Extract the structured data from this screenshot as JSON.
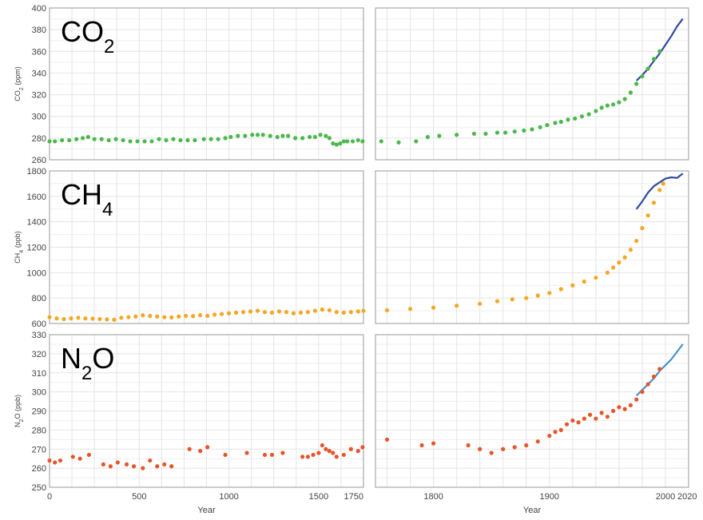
{
  "chart_data": [
    {
      "type": "scatter",
      "title": "CO2",
      "title_main": "CO",
      "title_sub": "2",
      "ylabel": "CO2 (ppm)",
      "ylabel_main": "CO",
      "ylabel_sub": "2",
      "ylabel_rest": " (ppm)",
      "ylim": [
        260,
        400
      ],
      "yticks": [
        260,
        280,
        300,
        320,
        340,
        360,
        380,
        400
      ],
      "color": "#4cb84c",
      "line_color": "#2e4a9e",
      "left_points": [
        [
          0,
          277
        ],
        [
          30,
          277
        ],
        [
          70,
          278
        ],
        [
          110,
          278
        ],
        [
          150,
          279
        ],
        [
          185,
          280
        ],
        [
          215,
          281
        ],
        [
          250,
          279
        ],
        [
          290,
          279
        ],
        [
          330,
          278
        ],
        [
          370,
          279
        ],
        [
          410,
          278
        ],
        [
          450,
          277
        ],
        [
          490,
          277
        ],
        [
          530,
          277
        ],
        [
          570,
          277
        ],
        [
          610,
          279
        ],
        [
          650,
          278
        ],
        [
          690,
          279
        ],
        [
          730,
          278
        ],
        [
          770,
          278
        ],
        [
          810,
          278
        ],
        [
          860,
          279
        ],
        [
          900,
          279
        ],
        [
          940,
          279
        ],
        [
          980,
          280
        ],
        [
          1010,
          281
        ],
        [
          1050,
          282
        ],
        [
          1090,
          282
        ],
        [
          1130,
          283
        ],
        [
          1160,
          283
        ],
        [
          1190,
          283
        ],
        [
          1230,
          282
        ],
        [
          1270,
          281
        ],
        [
          1300,
          282
        ],
        [
          1330,
          282
        ],
        [
          1370,
          280
        ],
        [
          1410,
          280
        ],
        [
          1450,
          281
        ],
        [
          1480,
          281
        ],
        [
          1510,
          283
        ],
        [
          1540,
          282
        ],
        [
          1560,
          280
        ],
        [
          1580,
          275
        ],
        [
          1600,
          274
        ],
        [
          1620,
          275
        ],
        [
          1640,
          277
        ],
        [
          1660,
          277
        ],
        [
          1690,
          277
        ],
        [
          1720,
          278
        ],
        [
          1745,
          277
        ]
      ],
      "right_points": [
        [
          1755,
          277
        ],
        [
          1770,
          276
        ],
        [
          1785,
          277
        ],
        [
          1795,
          281
        ],
        [
          1805,
          282
        ],
        [
          1820,
          283
        ],
        [
          1835,
          284
        ],
        [
          1845,
          284
        ],
        [
          1855,
          285
        ],
        [
          1862,
          285
        ],
        [
          1870,
          286
        ],
        [
          1878,
          287
        ],
        [
          1885,
          288
        ],
        [
          1892,
          290
        ],
        [
          1898,
          292
        ],
        [
          1905,
          294
        ],
        [
          1910,
          295
        ],
        [
          1916,
          297
        ],
        [
          1922,
          298
        ],
        [
          1928,
          300
        ],
        [
          1934,
          302
        ],
        [
          1940,
          305
        ],
        [
          1945,
          308
        ],
        [
          1950,
          310
        ],
        [
          1955,
          311
        ],
        [
          1960,
          313
        ],
        [
          1965,
          316
        ],
        [
          1970,
          322
        ],
        [
          1975,
          330
        ],
        [
          1980,
          337
        ],
        [
          1985,
          344
        ],
        [
          1990,
          353
        ],
        [
          1995,
          360
        ]
      ],
      "right_line": [
        [
          1975,
          333
        ],
        [
          1980,
          338
        ],
        [
          1985,
          344
        ],
        [
          1990,
          351
        ],
        [
          1995,
          358
        ],
        [
          2000,
          366
        ],
        [
          2005,
          374
        ],
        [
          2010,
          383
        ],
        [
          2015,
          390
        ]
      ]
    },
    {
      "type": "scatter",
      "title": "CH4",
      "title_main": "CH",
      "title_sub": "4",
      "ylabel": "CH4 (ppb)",
      "ylabel_main": "CH",
      "ylabel_sub": "4",
      "ylabel_rest": " (ppb)",
      "ylim": [
        600,
        1800
      ],
      "yticks": [
        600,
        800,
        1000,
        1200,
        1400,
        1600,
        1800
      ],
      "color": "#f5a623",
      "line_color": "#2e4a9e",
      "left_points": [
        [
          0,
          650
        ],
        [
          40,
          640
        ],
        [
          80,
          635
        ],
        [
          120,
          640
        ],
        [
          160,
          645
        ],
        [
          200,
          640
        ],
        [
          240,
          638
        ],
        [
          280,
          635
        ],
        [
          320,
          632
        ],
        [
          360,
          630
        ],
        [
          400,
          645
        ],
        [
          440,
          650
        ],
        [
          480,
          655
        ],
        [
          520,
          665
        ],
        [
          560,
          660
        ],
        [
          600,
          655
        ],
        [
          640,
          650
        ],
        [
          680,
          648
        ],
        [
          720,
          655
        ],
        [
          760,
          660
        ],
        [
          800,
          658
        ],
        [
          840,
          665
        ],
        [
          880,
          660
        ],
        [
          920,
          670
        ],
        [
          960,
          675
        ],
        [
          1000,
          680
        ],
        [
          1040,
          685
        ],
        [
          1080,
          690
        ],
        [
          1120,
          695
        ],
        [
          1160,
          700
        ],
        [
          1200,
          690
        ],
        [
          1240,
          685
        ],
        [
          1280,
          695
        ],
        [
          1320,
          690
        ],
        [
          1360,
          680
        ],
        [
          1400,
          685
        ],
        [
          1440,
          690
        ],
        [
          1480,
          700
        ],
        [
          1520,
          710
        ],
        [
          1560,
          705
        ],
        [
          1600,
          690
        ],
        [
          1640,
          685
        ],
        [
          1680,
          690
        ],
        [
          1720,
          695
        ],
        [
          1750,
          700
        ]
      ],
      "right_points": [
        [
          1760,
          705
        ],
        [
          1780,
          715
        ],
        [
          1800,
          725
        ],
        [
          1820,
          740
        ],
        [
          1840,
          755
        ],
        [
          1855,
          775
        ],
        [
          1868,
          790
        ],
        [
          1880,
          800
        ],
        [
          1890,
          820
        ],
        [
          1900,
          840
        ],
        [
          1910,
          870
        ],
        [
          1920,
          900
        ],
        [
          1930,
          930
        ],
        [
          1940,
          960
        ],
        [
          1950,
          1000
        ],
        [
          1955,
          1040
        ],
        [
          1960,
          1080
        ],
        [
          1965,
          1120
        ],
        [
          1970,
          1180
        ],
        [
          1975,
          1250
        ],
        [
          1980,
          1350
        ],
        [
          1985,
          1450
        ],
        [
          1990,
          1550
        ],
        [
          1995,
          1650
        ],
        [
          1998,
          1700
        ]
      ],
      "right_line": [
        [
          1975,
          1500
        ],
        [
          1980,
          1560
        ],
        [
          1985,
          1630
        ],
        [
          1990,
          1680
        ],
        [
          1995,
          1710
        ],
        [
          2000,
          1740
        ],
        [
          2005,
          1750
        ],
        [
          2010,
          1745
        ],
        [
          2015,
          1780
        ]
      ]
    },
    {
      "type": "scatter",
      "title": "N2O",
      "title_main": "N",
      "title_sub": "2",
      "title_rest": "O",
      "ylabel": "N2O (ppb)",
      "ylabel_main": "N",
      "ylabel_sub": "2",
      "ylabel_rest": "O (ppb)",
      "ylim": [
        250,
        330
      ],
      "yticks": [
        250,
        260,
        270,
        280,
        290,
        300,
        310,
        320,
        330
      ],
      "color": "#e8552a",
      "line_color": "#4a90c8",
      "left_points": [
        [
          0,
          264
        ],
        [
          30,
          263
        ],
        [
          60,
          264
        ],
        [
          130,
          266
        ],
        [
          170,
          265
        ],
        [
          220,
          267
        ],
        [
          300,
          262
        ],
        [
          340,
          261
        ],
        [
          380,
          263
        ],
        [
          430,
          262
        ],
        [
          470,
          261
        ],
        [
          520,
          260
        ],
        [
          560,
          264
        ],
        [
          600,
          261
        ],
        [
          640,
          262
        ],
        [
          680,
          261
        ],
        [
          780,
          270
        ],
        [
          840,
          269
        ],
        [
          880,
          271
        ],
        [
          980,
          267
        ],
        [
          1100,
          268
        ],
        [
          1200,
          267
        ],
        [
          1240,
          267
        ],
        [
          1300,
          268
        ],
        [
          1410,
          266
        ],
        [
          1440,
          266
        ],
        [
          1470,
          267
        ],
        [
          1500,
          268
        ],
        [
          1520,
          272
        ],
        [
          1540,
          270
        ],
        [
          1560,
          269
        ],
        [
          1580,
          268
        ],
        [
          1600,
          266
        ],
        [
          1640,
          267
        ],
        [
          1680,
          270
        ],
        [
          1720,
          269
        ],
        [
          1745,
          271
        ]
      ],
      "right_points": [
        [
          1760,
          275
        ],
        [
          1790,
          272
        ],
        [
          1800,
          273
        ],
        [
          1830,
          272
        ],
        [
          1840,
          270
        ],
        [
          1850,
          268
        ],
        [
          1860,
          270
        ],
        [
          1870,
          271
        ],
        [
          1880,
          272
        ],
        [
          1890,
          274
        ],
        [
          1900,
          277
        ],
        [
          1905,
          279
        ],
        [
          1910,
          280
        ],
        [
          1915,
          283
        ],
        [
          1920,
          285
        ],
        [
          1925,
          284
        ],
        [
          1930,
          286
        ],
        [
          1935,
          288
        ],
        [
          1940,
          286
        ],
        [
          1945,
          289
        ],
        [
          1950,
          287
        ],
        [
          1955,
          290
        ],
        [
          1960,
          292
        ],
        [
          1965,
          291
        ],
        [
          1970,
          293
        ],
        [
          1975,
          296
        ],
        [
          1980,
          300
        ],
        [
          1985,
          304
        ],
        [
          1990,
          308
        ],
        [
          1995,
          312
        ]
      ],
      "right_line": [
        [
          1975,
          298
        ],
        [
          1980,
          301
        ],
        [
          1985,
          304
        ],
        [
          1990,
          307
        ],
        [
          1995,
          311
        ],
        [
          2000,
          314
        ],
        [
          2005,
          317
        ],
        [
          2010,
          321
        ],
        [
          2015,
          325
        ]
      ]
    }
  ],
  "axes": {
    "left_xlim": [
      0,
      1750
    ],
    "right_xlim": [
      1750,
      2020
    ],
    "left_xticks": [
      0,
      500,
      1000,
      1500,
      1750
    ],
    "right_xticks": [
      1800,
      1900,
      2000,
      2020
    ],
    "xlabel": "Year"
  }
}
